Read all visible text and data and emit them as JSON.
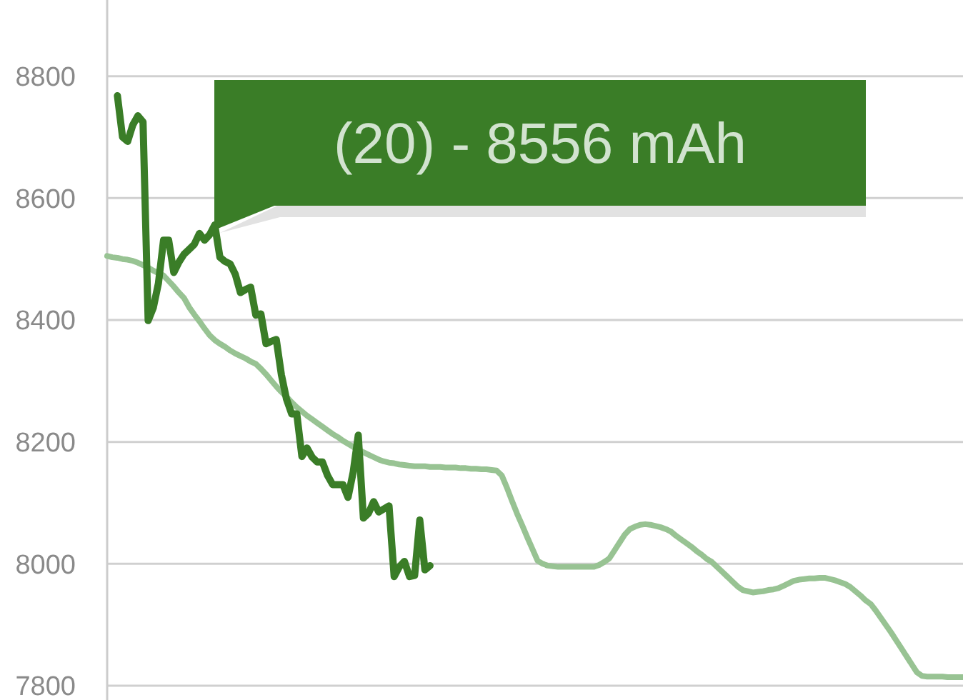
{
  "chart_data": {
    "type": "line",
    "ylim": [
      7800,
      8925
    ],
    "yticks": [
      7800,
      8000,
      8200,
      8400,
      8600,
      8800
    ],
    "tick_labels": "y",
    "grid": "y",
    "marker": "none",
    "categories": [
      null,
      null,
      null,
      null,
      null,
      null,
      null,
      null,
      null,
      null,
      null,
      null,
      null,
      null,
      null,
      null,
      null,
      null,
      null,
      null,
      null,
      null,
      null,
      null,
      null,
      null,
      null,
      null,
      null,
      null,
      null,
      null,
      null,
      null,
      null,
      null,
      null,
      null,
      null,
      null,
      null,
      null,
      null,
      null,
      null,
      null,
      null,
      null,
      null,
      null,
      null,
      null,
      null,
      null,
      null,
      null,
      null,
      null,
      null,
      null,
      null,
      null,
      null,
      null,
      null,
      null,
      null,
      null,
      null,
      null,
      null,
      null,
      null,
      null,
      null,
      null,
      null,
      null,
      null,
      null,
      null,
      null,
      null,
      null,
      null,
      null,
      null,
      null,
      null,
      null,
      null,
      null,
      null,
      null,
      null,
      null,
      null,
      null,
      null,
      null,
      null,
      null,
      null,
      null,
      null,
      null,
      null,
      null,
      null,
      null,
      null,
      null,
      null,
      null,
      null,
      null,
      null,
      null,
      null,
      null,
      null,
      null,
      null,
      null,
      null,
      null,
      null,
      null,
      null,
      null,
      null,
      null,
      null,
      null,
      null,
      null,
      null,
      null,
      null,
      null,
      null,
      null,
      null,
      null,
      null,
      null,
      null,
      null,
      null,
      null,
      null,
      null,
      null,
      null,
      null,
      null,
      null,
      null,
      null,
      null,
      null,
      null,
      null,
      null,
      null,
      null,
      null,
      null
    ],
    "series": [
      {
        "color": "#98c393",
        "values": [
          8505,
          8503,
          8502,
          8500,
          8499,
          8497,
          8494,
          8490,
          8486,
          8481,
          8477,
          8473,
          8464,
          8455,
          8445,
          8436,
          8421,
          8409,
          8398,
          8386,
          8375,
          8367,
          8361,
          8356,
          8350,
          8345,
          8341,
          8337,
          8332,
          8328,
          8320,
          8311,
          8301,
          8291,
          8282,
          8274,
          8265,
          8257,
          8250,
          8243,
          8237,
          8231,
          8225,
          8219,
          8213,
          8208,
          8202,
          8197,
          8192,
          8187,
          8183,
          8179,
          8175,
          8171,
          8168,
          8166,
          8165,
          8163,
          8162,
          8161,
          8160,
          8160,
          8160,
          8159,
          8159,
          8159,
          8158,
          8158,
          8158,
          8157,
          8157,
          8156,
          8156,
          8155,
          8155,
          8154,
          8153,
          8145,
          8125,
          8103,
          8082,
          8063,
          8043,
          8024,
          8005,
          8000,
          7997,
          7996,
          7995,
          7995,
          7995,
          7995,
          7995,
          7995,
          7995,
          7995,
          7998,
          8003,
          8009,
          8022,
          8035,
          8048,
          8057,
          8061,
          8064,
          8065,
          8064,
          8062,
          8060,
          8057,
          8053,
          8046,
          8040,
          8034,
          8028,
          8021,
          8015,
          8008,
          8003,
          7995,
          7987,
          7979,
          7971,
          7963,
          7957,
          7955,
          7953,
          7954,
          7955,
          7957,
          7958,
          7960,
          7964,
          7968,
          7972,
          7974,
          7975,
          7976,
          7976,
          7977,
          7977,
          7975,
          7973,
          7970,
          7967,
          7962,
          7955,
          7948,
          7940,
          7934,
          7923,
          7911,
          7899,
          7887,
          7874,
          7861,
          7848,
          7835,
          7822,
          7816,
          7815,
          7815,
          7815,
          7815,
          7814,
          7814,
          7814,
          7814
        ]
      },
      {
        "color": "#3a7d27",
        "values": [
          null,
          null,
          8768,
          8700,
          8693,
          8720,
          8735,
          8725,
          8399,
          8420,
          8460,
          8531,
          8531,
          8478,
          8495,
          8508,
          8516,
          8524,
          8542,
          8531,
          8540,
          8556,
          8503,
          8496,
          8492,
          8475,
          8445,
          8450,
          8454,
          8408,
          8410,
          8361,
          8365,
          8368,
          8310,
          8270,
          8246,
          8246,
          8176,
          8190,
          8175,
          8167,
          8167,
          8145,
          8130,
          8130,
          8130,
          8109,
          8150,
          8211,
          8075,
          8083,
          8102,
          8085,
          8090,
          8095,
          7979,
          7995,
          8004,
          7979,
          7981,
          8072,
          7990,
          7997,
          null,
          null,
          null,
          null,
          null,
          null,
          null,
          null,
          null,
          null,
          null,
          null,
          null,
          null,
          null,
          null,
          null,
          null,
          null,
          null,
          null,
          null,
          null,
          null,
          null,
          null,
          null,
          null,
          null,
          null,
          null,
          null,
          null,
          null,
          null,
          null,
          null,
          null,
          null,
          null,
          null,
          null,
          null,
          null,
          null,
          null,
          null,
          null,
          null,
          null,
          null,
          null,
          null,
          null,
          null,
          null,
          null,
          null,
          null,
          null,
          null,
          null,
          null,
          null,
          null,
          null,
          null,
          null,
          null,
          null,
          null,
          null,
          null,
          null,
          null,
          null,
          null,
          null,
          null,
          null,
          null,
          null,
          null,
          null,
          null,
          null,
          null,
          null,
          null,
          null,
          null,
          null,
          null,
          null,
          null,
          null,
          null,
          null,
          null,
          null,
          null,
          null,
          null,
          null
        ]
      }
    ],
    "annotations": [
      "(20) - 8556 mAh"
    ]
  }
}
